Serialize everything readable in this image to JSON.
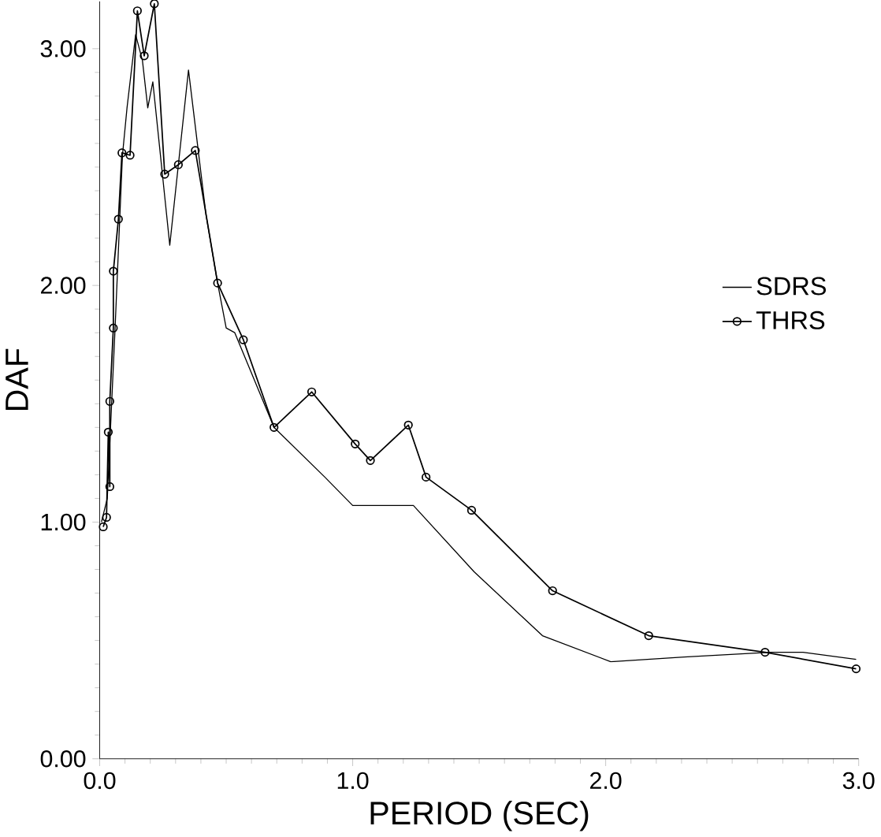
{
  "chart_data": {
    "type": "line",
    "xlabel": "PERIOD (SEC)",
    "ylabel": "DAF",
    "xlim": [
      0,
      3.0
    ],
    "ylim": [
      0,
      3.2
    ],
    "xticks": [
      {
        "value": 0,
        "label": "0.0"
      },
      {
        "value": 1,
        "label": "1.0"
      },
      {
        "value": 2,
        "label": "2.0"
      },
      {
        "value": 3,
        "label": "3.0"
      }
    ],
    "yticks": [
      {
        "value": 0,
        "label": "0.00"
      },
      {
        "value": 1,
        "label": "1.00"
      },
      {
        "value": 2,
        "label": "2.00"
      },
      {
        "value": 3,
        "label": "3.00"
      }
    ],
    "legend": "right",
    "grid": false,
    "series": [
      {
        "name": "SDRS",
        "color": "#000000",
        "marker": "none",
        "x": [
          0.007,
          0.03,
          0.06,
          0.09,
          0.108,
          0.142,
          0.169,
          0.19,
          0.21,
          0.277,
          0.351,
          0.42,
          0.466,
          0.5,
          0.534,
          0.689,
          0.89,
          1.0,
          1.07,
          1.24,
          1.48,
          1.75,
          2.02,
          2.31,
          2.65,
          2.78,
          2.99
        ],
        "values": [
          1.0,
          1.1,
          1.8,
          2.55,
          2.75,
          3.06,
          2.95,
          2.75,
          2.86,
          2.17,
          2.91,
          2.3,
          2.01,
          1.82,
          1.8,
          1.4,
          1.19,
          1.07,
          1.07,
          1.07,
          0.79,
          0.52,
          0.41,
          0.43,
          0.45,
          0.45,
          0.42
        ]
      },
      {
        "name": "THRS",
        "color": "#000000",
        "marker": "circle",
        "x": [
          0.014,
          0.027,
          0.034,
          0.04,
          0.04,
          0.054,
          0.054,
          0.074,
          0.088,
          0.12,
          0.149,
          0.176,
          0.216,
          0.257,
          0.311,
          0.378,
          0.466,
          0.568,
          0.689,
          0.838,
          1.01,
          1.07,
          1.22,
          1.29,
          1.47,
          1.79,
          2.17,
          2.63,
          2.99
        ],
        "values": [
          0.98,
          1.02,
          1.38,
          1.15,
          1.51,
          1.82,
          2.06,
          2.28,
          2.56,
          2.55,
          3.16,
          2.97,
          3.19,
          2.47,
          2.51,
          2.57,
          2.01,
          1.77,
          1.4,
          1.55,
          1.33,
          1.26,
          1.41,
          1.19,
          1.05,
          0.71,
          0.52,
          0.45,
          0.38
        ]
      }
    ]
  }
}
